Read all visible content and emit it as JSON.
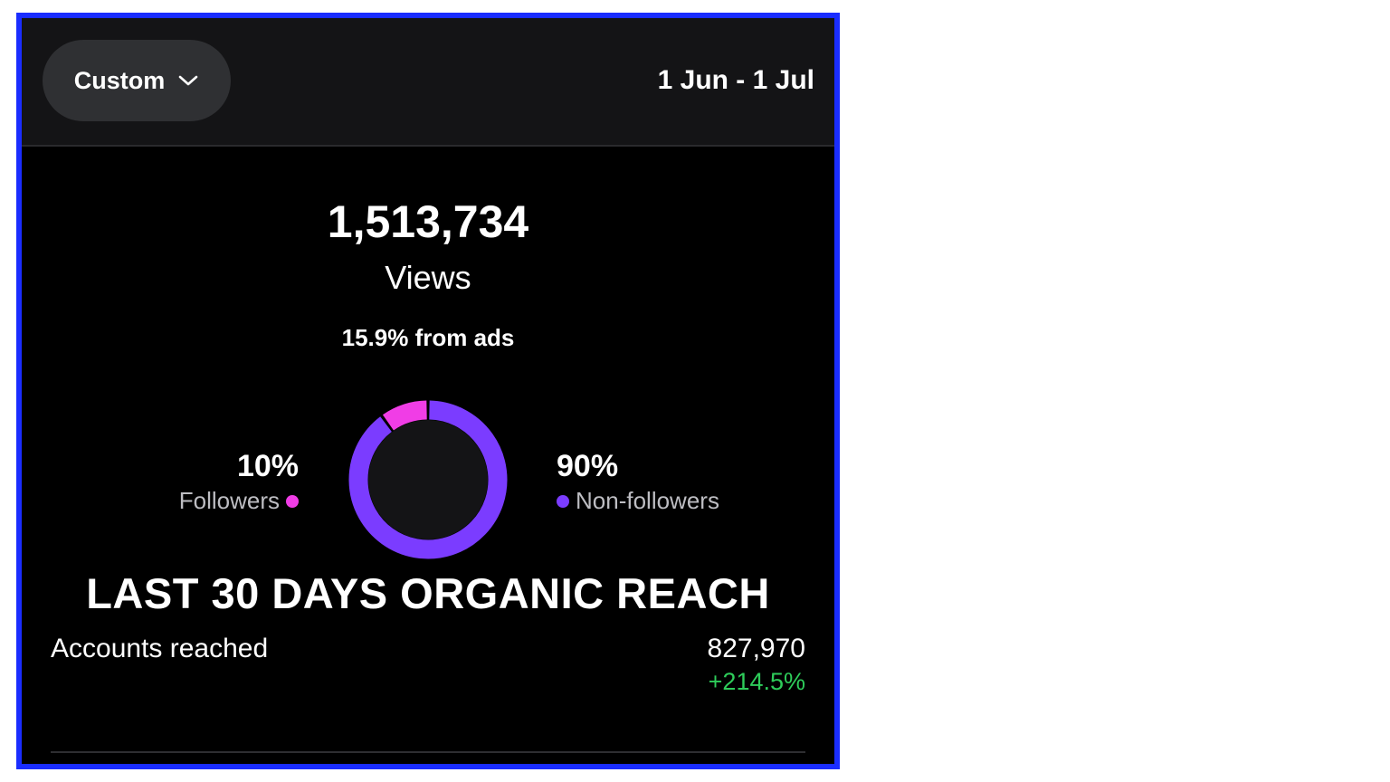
{
  "header": {
    "range_selector_label": "Custom",
    "date_range": "1 Jun - 1 Jul"
  },
  "summary": {
    "views_total": "1,513,734",
    "views_label": "Views",
    "ads_note": "15.9% from ads"
  },
  "audience": {
    "followers": {
      "percent_label": "10%",
      "label": "Followers",
      "fraction": 0.1,
      "color": "#f03de6"
    },
    "non_followers": {
      "percent_label": "90%",
      "label": "Non-followers",
      "fraction": 0.9,
      "color": "#7b3cff"
    }
  },
  "headline": "LAST 30 DAYS ORGANIC REACH",
  "accounts": {
    "label": "Accounts reached",
    "value": "827,970",
    "change": "+214.5%",
    "change_color": "#2ecc5a"
  },
  "colors": {
    "frame_border": "#1a2dff",
    "background": "#000000",
    "header_bg": "#141416"
  }
}
